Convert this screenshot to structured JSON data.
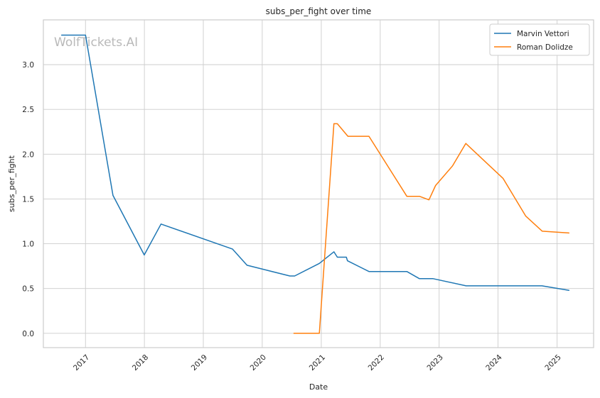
{
  "chart_data": {
    "type": "line",
    "title": "subs_per_fight over time",
    "xlabel": "Date",
    "ylabel": "subs_per_fight",
    "watermark": "WolfTickets.AI",
    "x_axis": {
      "kind": "date",
      "range": [
        "2016-04-15",
        "2025-08-15"
      ],
      "ticks": [
        "2017-01-01",
        "2018-01-01",
        "2019-01-01",
        "2020-01-01",
        "2021-01-01",
        "2022-01-01",
        "2023-01-01",
        "2024-01-01",
        "2025-01-01"
      ],
      "tick_labels": [
        "2017",
        "2018",
        "2019",
        "2020",
        "2021",
        "2022",
        "2023",
        "2024",
        "2025"
      ]
    },
    "y_axis": {
      "range": [
        -0.16,
        3.5
      ],
      "ticks": [
        0.0,
        0.5,
        1.0,
        1.5,
        2.0,
        2.5,
        3.0
      ],
      "tick_labels": [
        "0.0",
        "0.5",
        "1.0",
        "1.5",
        "2.0",
        "2.5",
        "3.0"
      ]
    },
    "grid": true,
    "legend_position": "top-right",
    "series": [
      {
        "name": "Marvin Vettori",
        "color": "#1f77b4",
        "points": [
          {
            "x": "2016-08-06",
            "y": 3.33
          },
          {
            "x": "2017-01-01",
            "y": 3.33
          },
          {
            "x": "2017-06-20",
            "y": 1.54
          },
          {
            "x": "2017-12-31",
            "y": 0.875
          },
          {
            "x": "2018-04-14",
            "y": 1.22
          },
          {
            "x": "2019-07-01",
            "y": 0.94
          },
          {
            "x": "2019-09-29",
            "y": 0.76
          },
          {
            "x": "2020-06-20",
            "y": 0.64
          },
          {
            "x": "2020-07-20",
            "y": 0.64
          },
          {
            "x": "2020-12-20",
            "y": 0.78
          },
          {
            "x": "2021-03-20",
            "y": 0.91
          },
          {
            "x": "2021-04-10",
            "y": 0.85
          },
          {
            "x": "2021-06-05",
            "y": 0.85
          },
          {
            "x": "2021-06-12",
            "y": 0.81
          },
          {
            "x": "2021-10-23",
            "y": 0.69
          },
          {
            "x": "2022-06-15",
            "y": 0.69
          },
          {
            "x": "2022-09-01",
            "y": 0.61
          },
          {
            "x": "2022-11-25",
            "y": 0.61
          },
          {
            "x": "2023-06-17",
            "y": 0.53
          },
          {
            "x": "2024-09-29",
            "y": 0.53
          },
          {
            "x": "2025-03-15",
            "y": 0.48
          }
        ]
      },
      {
        "name": "Roman Dolidze",
        "color": "#ff7f0e",
        "points": [
          {
            "x": "2020-07-15",
            "y": 0.0
          },
          {
            "x": "2020-12-20",
            "y": 0.0
          },
          {
            "x": "2021-03-20",
            "y": 2.34
          },
          {
            "x": "2021-04-10",
            "y": 2.34
          },
          {
            "x": "2021-06-15",
            "y": 2.2
          },
          {
            "x": "2021-10-23",
            "y": 2.2
          },
          {
            "x": "2022-06-15",
            "y": 1.53
          },
          {
            "x": "2022-09-01",
            "y": 1.53
          },
          {
            "x": "2022-10-30",
            "y": 1.49
          },
          {
            "x": "2022-12-10",
            "y": 1.65
          },
          {
            "x": "2023-03-25",
            "y": 1.87
          },
          {
            "x": "2023-06-15",
            "y": 2.12
          },
          {
            "x": "2024-02-01",
            "y": 1.73
          },
          {
            "x": "2024-06-20",
            "y": 1.31
          },
          {
            "x": "2024-10-01",
            "y": 1.14
          },
          {
            "x": "2025-03-15",
            "y": 1.12
          }
        ]
      }
    ]
  }
}
